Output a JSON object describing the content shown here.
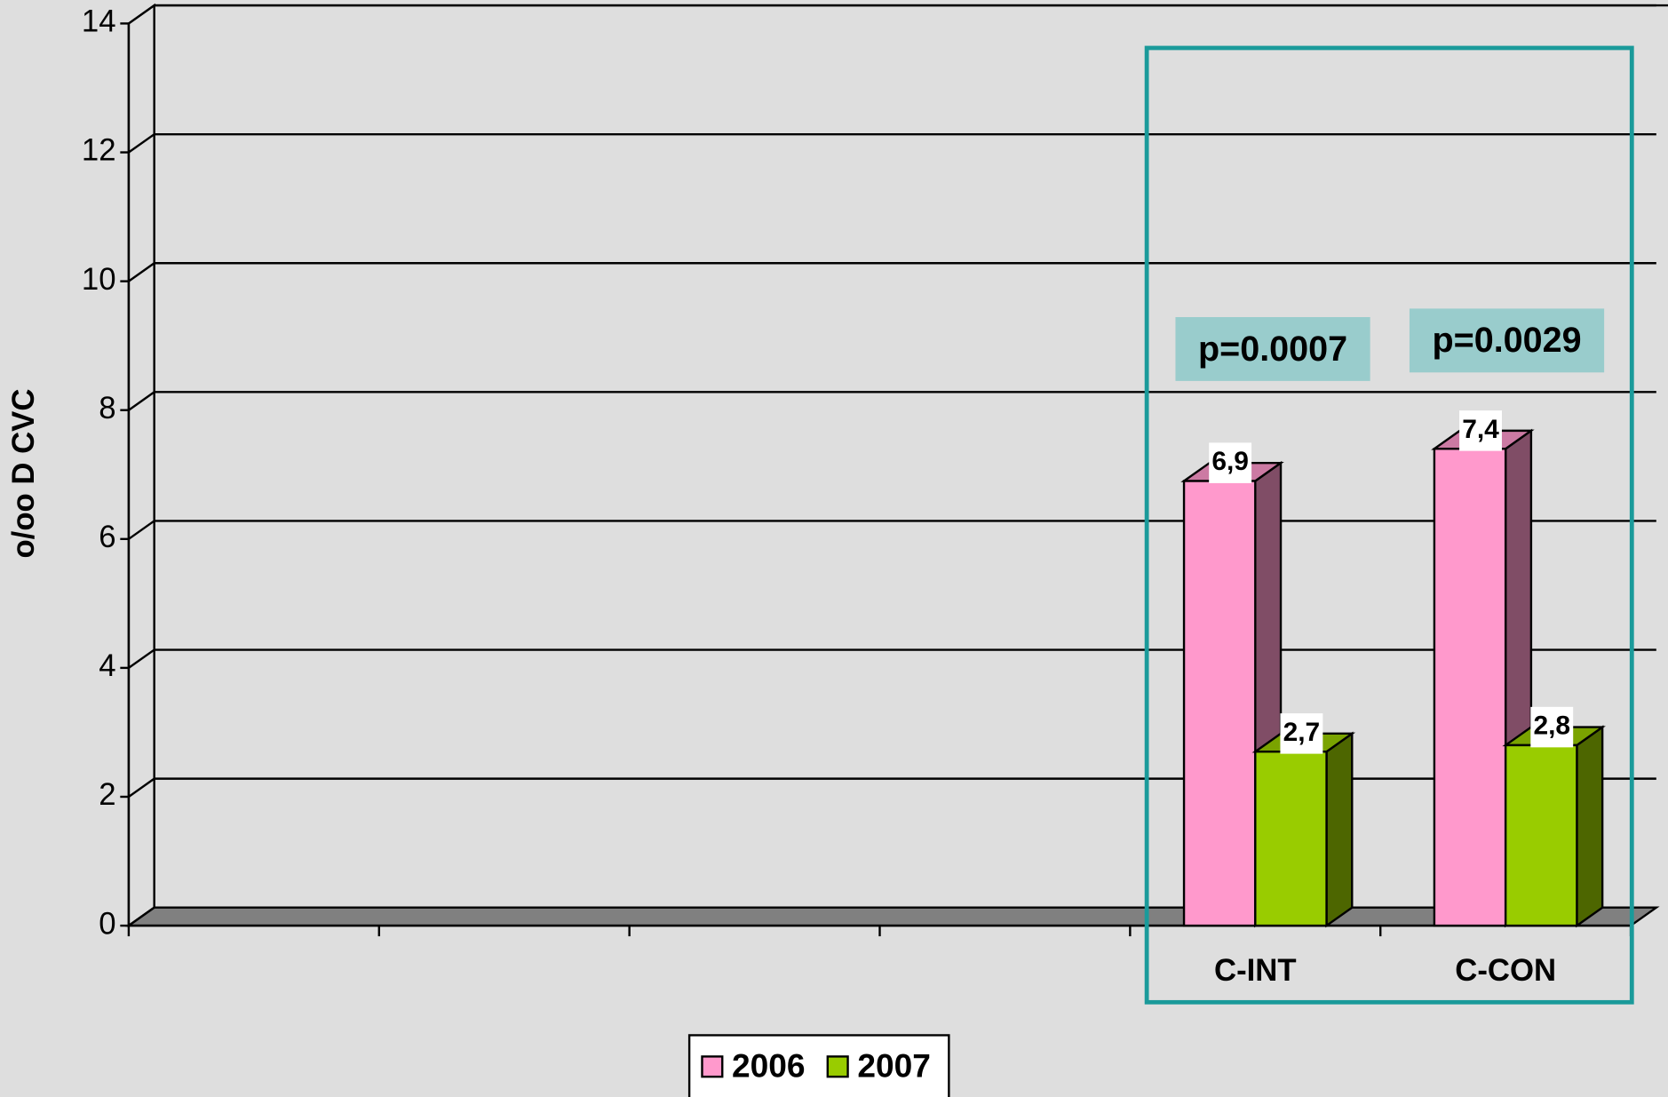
{
  "chart_data": {
    "type": "bar3d",
    "y_label": "o/oo D CVC",
    "categories": [
      null,
      null,
      null,
      null,
      "C-INT",
      "C-CON"
    ],
    "series": [
      {
        "name": "2006",
        "color": "#ff99cc",
        "values": [
          null,
          null,
          null,
          null,
          6.9,
          7.4
        ],
        "value_labels": [
          null,
          null,
          null,
          null,
          "6,9",
          "7,4"
        ]
      },
      {
        "name": "2007",
        "color": "#99cc00",
        "values": [
          null,
          null,
          null,
          null,
          2.7,
          2.8
        ],
        "value_labels": [
          null,
          null,
          null,
          null,
          "2,7",
          "2,8"
        ]
      }
    ],
    "annotations": [
      "p=0.0007",
      "p=0.0029"
    ],
    "ylim": [
      0,
      14
    ],
    "yticks": [
      0,
      2,
      4,
      6,
      8,
      10,
      12,
      14
    ],
    "grid": true,
    "legend": "bottom"
  }
}
